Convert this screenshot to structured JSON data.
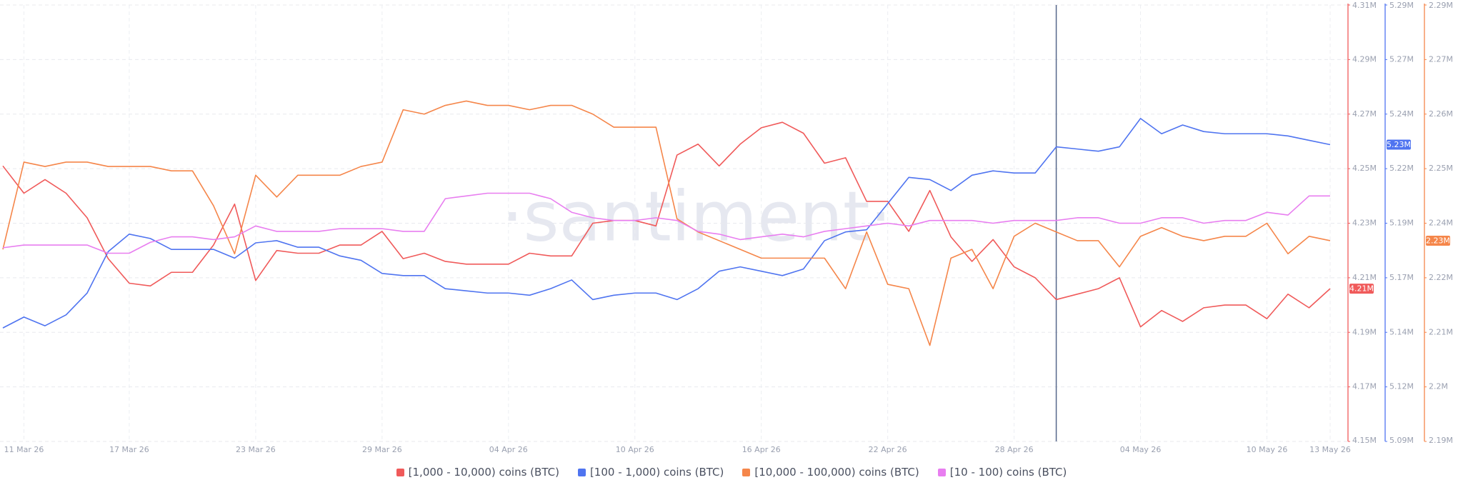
{
  "chart_data": {
    "type": "line",
    "watermark": "·santiment·",
    "grid": true,
    "highlight_index": 50,
    "categories": [
      null,
      "11 Mar 26",
      null,
      null,
      null,
      null,
      "17 Mar 26",
      null,
      null,
      null,
      null,
      null,
      "23 Mar 26",
      null,
      null,
      null,
      null,
      null,
      "29 Mar 26",
      null,
      null,
      null,
      null,
      null,
      "04 Apr 26",
      null,
      null,
      null,
      null,
      null,
      "10 Apr 26",
      null,
      null,
      null,
      null,
      null,
      "16 Apr 26",
      null,
      null,
      null,
      null,
      null,
      "22 Apr 26",
      null,
      null,
      null,
      null,
      null,
      "28 Apr 26",
      null,
      null,
      null,
      null,
      null,
      "04 May 26",
      null,
      null,
      null,
      null,
      null,
      "10 May 26",
      null,
      null,
      "13 May 26"
    ],
    "ylim": [
      4.15,
      4.31
    ],
    "yticks": [
      {
        "value": 4.31,
        "label": "4.31M"
      },
      {
        "value": 4.29,
        "label": "4.29M"
      },
      {
        "value": 4.27,
        "label": "4.27M"
      },
      {
        "value": 4.25,
        "label": "4.25M"
      },
      {
        "value": 4.23,
        "label": "4.23M"
      },
      {
        "value": 4.21,
        "label": "4.21M"
      },
      {
        "value": 4.19,
        "label": "4.19M"
      },
      {
        "value": 4.17,
        "label": "4.17M"
      },
      {
        "value": 4.15,
        "label": "4.15M"
      }
    ],
    "y2lim": [
      5.09,
      5.29
    ],
    "y2ticks": [
      {
        "value": 5.29,
        "label": "5.29M"
      },
      {
        "value": 5.265,
        "label": "5.27M"
      },
      {
        "value": 5.24,
        "label": "5.24M"
      },
      {
        "value": 5.215,
        "label": "5.22M"
      },
      {
        "value": 5.19,
        "label": "5.19M"
      },
      {
        "value": 5.165,
        "label": "5.17M"
      },
      {
        "value": 5.14,
        "label": "5.14M"
      },
      {
        "value": 5.115,
        "label": "5.12M"
      },
      {
        "value": 5.09,
        "label": "5.09M"
      }
    ],
    "y3lim": [
      2.1875,
      2.2875
    ],
    "y3ticks": [
      {
        "value": 2.2875,
        "label": "2.29M"
      },
      {
        "value": 2.275,
        "label": "2.27M"
      },
      {
        "value": 2.2625,
        "label": "2.26M"
      },
      {
        "value": 2.25,
        "label": "2.25M"
      },
      {
        "value": 2.2375,
        "label": "2.24M"
      },
      {
        "value": 2.225,
        "label": "2.22M"
      },
      {
        "value": 2.2125,
        "label": "2.21M"
      },
      {
        "value": 2.2,
        "label": "2.2M"
      },
      {
        "value": 2.1875,
        "label": "2.19M"
      }
    ],
    "series": [
      {
        "name": "[1,000 - 10,000) coins (BTC)",
        "color": "#f05a5a",
        "axis": "y",
        "last_label": "4.21M",
        "values": [
          4.251,
          4.241,
          4.246,
          4.241,
          4.232,
          4.217,
          4.208,
          4.207,
          4.212,
          4.212,
          4.222,
          4.237,
          4.209,
          4.22,
          4.219,
          4.219,
          4.222,
          4.222,
          4.227,
          4.217,
          4.219,
          4.216,
          4.215,
          4.215,
          4.215,
          4.219,
          4.218,
          4.218,
          4.23,
          4.231,
          4.231,
          4.229,
          4.255,
          4.259,
          4.251,
          4.259,
          4.265,
          4.267,
          4.263,
          4.252,
          4.254,
          4.238,
          4.238,
          4.227,
          4.242,
          4.225,
          4.216,
          4.224,
          4.214,
          4.21,
          4.202,
          4.204,
          4.206,
          4.21,
          4.192,
          4.198,
          4.194,
          4.199,
          4.2,
          4.2,
          4.195,
          4.204,
          4.199,
          4.206
        ]
      },
      {
        "name": "[100 - 1,000) coins (BTC)",
        "color": "#4f74f0",
        "axis": "y2",
        "last_label": "5.23M",
        "values": [
          5.142,
          5.147,
          5.143,
          5.148,
          5.158,
          5.177,
          5.185,
          5.183,
          5.178,
          5.178,
          5.178,
          5.174,
          5.181,
          5.182,
          5.179,
          5.179,
          5.175,
          5.173,
          5.167,
          5.166,
          5.166,
          5.16,
          5.159,
          5.158,
          5.158,
          5.157,
          5.16,
          5.164,
          5.155,
          5.157,
          5.158,
          5.158,
          5.155,
          5.16,
          5.168,
          5.17,
          5.168,
          5.166,
          5.169,
          5.182,
          5.186,
          5.187,
          5.199,
          5.211,
          5.21,
          5.205,
          5.212,
          5.214,
          5.213,
          5.213,
          5.225,
          5.224,
          5.223,
          5.225,
          5.238,
          5.231,
          5.235,
          5.232,
          5.231,
          5.231,
          5.231,
          5.23,
          5.228,
          5.226
        ]
      },
      {
        "name": "[10,000 - 100,000) coins (BTC)",
        "color": "#f5864a",
        "axis": "y3",
        "last_label": "2.23M",
        "values": [
          2.2315,
          2.2515,
          2.2505,
          2.2515,
          2.2515,
          2.2505,
          2.2505,
          2.2505,
          2.2495,
          2.2495,
          2.2415,
          2.2305,
          2.2485,
          2.2435,
          2.2485,
          2.2485,
          2.2485,
          2.2505,
          2.2515,
          2.2635,
          2.2625,
          2.2645,
          2.2655,
          2.2645,
          2.2645,
          2.2635,
          2.2645,
          2.2645,
          2.2625,
          2.2595,
          2.2595,
          2.2595,
          2.2385,
          2.2355,
          2.2335,
          2.2315,
          2.2295,
          2.2295,
          2.2295,
          2.2295,
          2.2225,
          2.2355,
          2.2235,
          2.2225,
          2.2095,
          2.2295,
          2.2315,
          2.2225,
          2.2345,
          2.2375,
          2.2355,
          2.2335,
          2.2335,
          2.2275,
          2.2345,
          2.2365,
          2.2345,
          2.2335,
          2.2345,
          2.2345,
          2.2375,
          2.2305,
          2.2345,
          2.2335
        ]
      },
      {
        "name": "[10 - 100) coins (BTC)",
        "color": "#e87ef0",
        "axis": "y",
        "values": [
          4.221,
          4.222,
          4.222,
          4.222,
          4.222,
          4.219,
          4.219,
          4.223,
          4.225,
          4.225,
          4.224,
          4.225,
          4.229,
          4.227,
          4.227,
          4.227,
          4.228,
          4.228,
          4.228,
          4.227,
          4.227,
          4.239,
          4.24,
          4.241,
          4.241,
          4.241,
          4.239,
          4.234,
          4.232,
          4.231,
          4.231,
          4.232,
          4.231,
          4.227,
          4.226,
          4.224,
          4.225,
          4.226,
          4.225,
          4.227,
          4.228,
          4.229,
          4.23,
          4.229,
          4.231,
          4.231,
          4.231,
          4.23,
          4.231,
          4.231,
          4.231,
          4.232,
          4.232,
          4.23,
          4.23,
          4.232,
          4.232,
          4.23,
          4.231,
          4.231,
          4.234,
          4.233,
          4.24,
          4.24
        ]
      }
    ]
  }
}
